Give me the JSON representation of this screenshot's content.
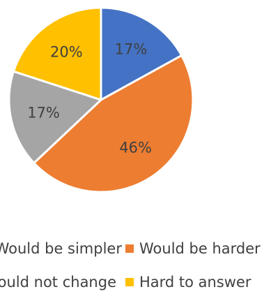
{
  "chart_data": {
    "type": "pie",
    "title": "",
    "slices": [
      {
        "label": "Would be simpler",
        "value": 17,
        "display": "17%",
        "color": "#4472C4"
      },
      {
        "label": "Would be harder",
        "value": 46,
        "display": "46%",
        "color": "#ED7D31"
      },
      {
        "label": "Would not change",
        "value": 17,
        "display": "17%",
        "color": "#A5A5A5"
      },
      {
        "label": "Hard to answer",
        "value": 20,
        "display": "20%",
        "color": "#FFC000"
      }
    ],
    "start_angle_deg": 0,
    "direction": "clockwise",
    "legend_position": "bottom"
  }
}
